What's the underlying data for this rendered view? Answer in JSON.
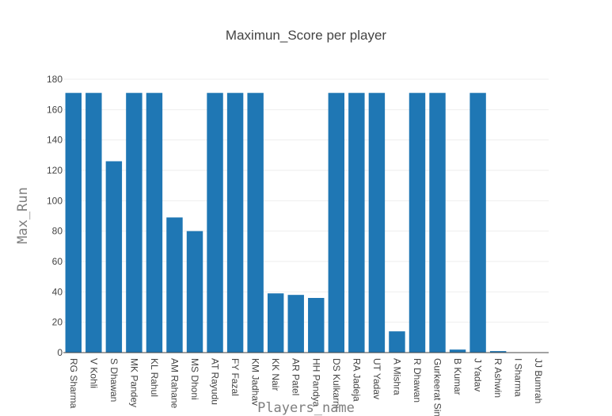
{
  "chart_data": {
    "type": "bar",
    "title": "Maximun_Score per player",
    "xlabel": "Players_name",
    "ylabel": "Max_Run",
    "ylim": [
      0,
      180
    ],
    "yticks": [
      0,
      20,
      40,
      60,
      80,
      100,
      120,
      140,
      160,
      180
    ],
    "grid": true,
    "bar_color": "#1f77b4",
    "categories": [
      "RG Sharma",
      "V Kohli",
      "S Dhawan",
      "MK Pandey",
      "KL Rahul",
      "AM Rahane",
      "MS Dhoni",
      "AT Rayudu",
      "FY Fazal",
      "KM Jadhav",
      "KK Nair",
      "AR Patel",
      "HH Pandya",
      "DS Kulkarni",
      "RA Jadeja",
      "UT Yadav",
      "A Mishra",
      "R Dhawan",
      "Gurkeerat Singh",
      "B Kumar",
      "J Yadav",
      "R Ashwin",
      "I Sharma",
      "JJ Bumrah"
    ],
    "values": [
      171,
      171,
      126,
      171,
      171,
      89,
      80,
      171,
      171,
      171,
      39,
      38,
      36,
      171,
      171,
      171,
      14,
      171,
      171,
      2,
      171,
      1,
      0,
      0
    ]
  }
}
